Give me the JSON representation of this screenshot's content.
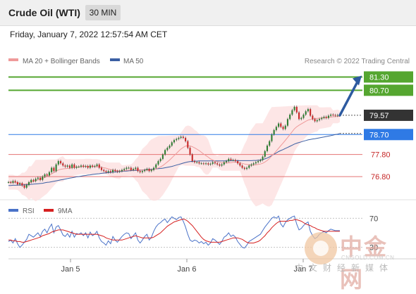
{
  "header": {
    "title": "Crude Oil (WTI)",
    "timeframe": "30 MIN",
    "timestamp": "Friday, January 7, 2022 12:57:54 AM CET"
  },
  "watermark": {
    "brand": "中金网",
    "url": "CNGOLD.COM.CN",
    "tagline": "中文财经新媒体"
  },
  "colors": {
    "candle_up": "#2e7d32",
    "candle_down": "#c62828",
    "ma20": "#ef9a9a",
    "bollinger_fill": "#fde0e0",
    "ma50": "#3b5fa3",
    "resistance": "#55a630",
    "current": "#333333",
    "pivot": "#2f7ae5",
    "support": "#e57373",
    "arrow": "#2d5aa0",
    "rsi": "#4a72c8",
    "rsi_ma": "#d62020"
  },
  "chart_data": [
    {
      "type": "candlestick",
      "title": "",
      "legend": [
        {
          "name": "MA 20 + Bollinger Bands",
          "color": "#ef9a9a"
        },
        {
          "name": "MA 50",
          "color": "#3b5fa3"
        }
      ],
      "legend_position": "top-left",
      "credit": "Research © 2022 Trading Central",
      "x_ticks": [
        "Jan 5",
        "Jan 6",
        "Jan 7"
      ],
      "ylim": [
        76.2,
        81.6
      ],
      "levels": [
        {
          "value": 81.3,
          "label": "81.30",
          "kind": "resistance"
        },
        {
          "value": 80.7,
          "label": "80.70",
          "kind": "resistance"
        },
        {
          "value": 79.57,
          "label": "79.57",
          "kind": "current"
        },
        {
          "value": 78.7,
          "label": "78.70",
          "kind": "pivot"
        },
        {
          "value": 77.8,
          "label": "77.80",
          "kind": "support"
        },
        {
          "value": 76.8,
          "label": "76.80",
          "kind": "support"
        }
      ],
      "arrow": {
        "from": 79.57,
        "to": 81.3,
        "direction": "up"
      },
      "series": [
        {
          "name": "price",
          "close": [
            76.55,
            76.52,
            76.6,
            76.55,
            76.45,
            76.5,
            76.4,
            76.3,
            76.42,
            76.55,
            76.65,
            76.6,
            76.7,
            76.75,
            76.65,
            76.8,
            76.9,
            76.85,
            77.0,
            77.2,
            77.05,
            77.35,
            77.5,
            77.4,
            77.3,
            77.25,
            77.3,
            77.2,
            77.35,
            77.2,
            77.25,
            77.25,
            77.3,
            77.25,
            77.28,
            77.2,
            77.3,
            77.25,
            77.28,
            77.35,
            77.2,
            77.1,
            77.05,
            77.0,
            77.05,
            77.0,
            77.1,
            77.05,
            77.02,
            77.05,
            77.1,
            77.15,
            77.2,
            77.2,
            77.1,
            77.15,
            77.2,
            77.05,
            77.0,
            77.05,
            77.1,
            77.15,
            77.05,
            77.1,
            77.2,
            77.35,
            77.5,
            77.6,
            77.8,
            78.0,
            78.1,
            78.2,
            78.35,
            78.45,
            78.5,
            78.55,
            78.6,
            78.55,
            78.4,
            78.1,
            77.8,
            77.5,
            77.45,
            77.45,
            77.4,
            77.4,
            77.38,
            77.4,
            77.35,
            77.38,
            77.45,
            77.4,
            77.35,
            77.3,
            77.35,
            77.45,
            77.5,
            77.6,
            77.55,
            77.55,
            77.5,
            77.4,
            77.3,
            77.2,
            77.15,
            77.2,
            77.3,
            77.35,
            77.4,
            77.45,
            77.5,
            77.55,
            77.7,
            77.95,
            78.2,
            78.4,
            78.7,
            78.9,
            79.05,
            79.2,
            79.05,
            78.95,
            79.1,
            79.4,
            79.6,
            79.8,
            79.95,
            79.7,
            79.4,
            79.45,
            79.6,
            79.75,
            79.85,
            79.55,
            79.4,
            79.3,
            79.35,
            79.4,
            79.45,
            79.5,
            79.45,
            79.55,
            79.6,
            79.58,
            79.55,
            79.58,
            79.57
          ],
          "ma20": [
            76.55,
            76.55,
            76.55,
            76.53,
            76.52,
            76.5,
            76.48,
            76.46,
            76.47,
            76.5,
            76.55,
            76.58,
            76.62,
            76.65,
            76.68,
            76.72,
            76.76,
            76.8,
            76.86,
            76.92,
            76.98,
            77.04,
            77.1,
            77.13,
            77.15,
            77.16,
            77.17,
            77.18,
            77.2,
            77.22,
            77.23,
            77.24,
            77.25,
            77.25,
            77.26,
            77.26,
            77.26,
            77.25,
            77.25,
            77.25,
            77.24,
            77.22,
            77.2,
            77.18,
            77.15,
            77.12,
            77.1,
            77.08,
            77.07,
            77.06,
            77.06,
            77.07,
            77.08,
            77.09,
            77.1,
            77.1,
            77.11,
            77.11,
            77.1,
            77.1,
            77.1,
            77.1,
            77.1,
            77.11,
            77.12,
            77.15,
            77.19,
            77.24,
            77.3,
            77.38,
            77.46,
            77.55,
            77.65,
            77.75,
            77.85,
            77.95,
            78.05,
            78.12,
            78.18,
            78.2,
            78.19,
            78.15,
            78.1,
            78.04,
            77.98,
            77.9,
            77.82,
            77.75,
            77.68,
            77.6,
            77.55,
            77.5,
            77.47,
            77.45,
            77.43,
            77.42,
            77.42,
            77.42,
            77.43,
            77.45,
            77.45,
            77.45,
            77.43,
            77.4,
            77.37,
            77.35,
            77.33,
            77.32,
            77.32,
            77.33,
            77.35,
            77.37,
            77.4,
            77.46,
            77.53,
            77.62,
            77.73,
            77.84,
            77.96,
            78.08,
            78.2,
            78.32,
            78.44,
            78.57,
            78.7,
            78.83,
            78.96,
            79.05,
            79.12,
            79.18,
            79.24,
            79.3,
            79.35,
            79.38,
            79.4,
            79.42,
            79.43,
            79.44,
            79.45,
            79.46,
            79.47,
            79.48,
            79.49,
            79.5,
            79.51,
            79.52,
            79.52
          ],
          "ma50": [
            76.4,
            76.4,
            76.41,
            76.41,
            76.42,
            76.42,
            76.42,
            76.43,
            76.43,
            76.44,
            76.45,
            76.46,
            76.47,
            76.48,
            76.49,
            76.5,
            76.52,
            76.54,
            76.55,
            76.57,
            76.59,
            76.61,
            76.63,
            76.65,
            76.67,
            76.69,
            76.71,
            76.73,
            76.75,
            76.77,
            76.79,
            76.8,
            76.82,
            76.84,
            76.85,
            76.87,
            76.88,
            76.9,
            76.91,
            76.92,
            76.93,
            76.95,
            76.96,
            76.97,
            76.98,
            76.99,
            77.0,
            77.01,
            77.02,
            77.03,
            77.04,
            77.05,
            77.05,
            77.06,
            77.07,
            77.08,
            77.08,
            77.09,
            77.1,
            77.1,
            77.11,
            77.12,
            77.12,
            77.13,
            77.14,
            77.15,
            77.16,
            77.17,
            77.18,
            77.2,
            77.22,
            77.24,
            77.26,
            77.29,
            77.32,
            77.35,
            77.38,
            77.41,
            77.44,
            77.46,
            77.48,
            77.49,
            77.5,
            77.5,
            77.51,
            77.51,
            77.51,
            77.51,
            77.51,
            77.51,
            77.51,
            77.51,
            77.51,
            77.51,
            77.51,
            77.51,
            77.51,
            77.51,
            77.52,
            77.52,
            77.52,
            77.52,
            77.52,
            77.52,
            77.52,
            77.52,
            77.52,
            77.52,
            77.53,
            77.53,
            77.54,
            77.55,
            77.57,
            77.6,
            77.64,
            77.69,
            77.75,
            77.81,
            77.87,
            77.93,
            77.98,
            78.02,
            78.07,
            78.12,
            78.17,
            78.22,
            78.27,
            78.31,
            78.34,
            78.37,
            78.4,
            78.43,
            78.46,
            78.48,
            78.5,
            78.51,
            78.53,
            78.55,
            78.57,
            78.59,
            78.61,
            78.63,
            78.65,
            78.67,
            78.7,
            78.72,
            78.75
          ]
        }
      ]
    },
    {
      "type": "line",
      "title": "",
      "legend": [
        {
          "name": "RSI",
          "color": "#4a72c8"
        },
        {
          "name": "9MA",
          "color": "#d62020"
        }
      ],
      "legend_position": "top-left",
      "ylim": [
        20,
        80
      ],
      "y_ticks": [
        "70",
        "30"
      ],
      "series": [
        {
          "name": "RSI",
          "values": [
            38,
            40,
            36,
            42,
            35,
            30,
            33,
            37,
            41,
            48,
            46,
            44,
            47,
            50,
            45,
            52,
            55,
            50,
            57,
            62,
            50,
            58,
            60,
            54,
            47,
            45,
            49,
            44,
            52,
            44,
            49,
            48,
            50,
            46,
            50,
            43,
            51,
            46,
            48,
            52,
            43,
            38,
            36,
            33,
            39,
            35,
            45,
            40,
            37,
            41,
            45,
            48,
            50,
            49,
            42,
            46,
            50,
            40,
            36,
            40,
            45,
            48,
            40,
            44,
            52,
            58,
            62,
            64,
            67,
            69,
            64,
            68,
            72,
            70,
            68,
            71,
            72,
            66,
            58,
            48,
            40,
            38,
            40,
            39,
            36,
            38,
            35,
            37,
            33,
            36,
            42,
            40,
            37,
            34,
            38,
            44,
            46,
            50,
            45,
            47,
            44,
            38,
            34,
            30,
            29,
            33,
            38,
            40,
            42,
            44,
            46,
            48,
            53,
            58,
            62,
            66,
            70,
            72,
            70,
            73,
            62,
            58,
            64,
            68,
            70,
            72,
            73,
            62,
            54,
            56,
            60,
            63,
            65,
            52,
            46,
            42,
            44,
            48,
            50,
            52,
            50,
            53,
            55,
            54,
            53,
            53,
            53
          ]
        },
        {
          "name": "9MA",
          "values": [
            40,
            40,
            39,
            39,
            38,
            38,
            37,
            37,
            38,
            39,
            40,
            41,
            42,
            43,
            44,
            46,
            47,
            48,
            49,
            51,
            52,
            53,
            54,
            54,
            54,
            53,
            52,
            51,
            50,
            49,
            48,
            48,
            48,
            48,
            48,
            48,
            48,
            48,
            48,
            48,
            47,
            46,
            45,
            43,
            42,
            41,
            40,
            40,
            40,
            40,
            40,
            41,
            42,
            43,
            44,
            45,
            46,
            45,
            44,
            43,
            43,
            43,
            43,
            43,
            44,
            46,
            48,
            50,
            53,
            56,
            59,
            61,
            63,
            65,
            66,
            67,
            68,
            69,
            68,
            66,
            63,
            60,
            56,
            52,
            48,
            44,
            41,
            39,
            38,
            37,
            37,
            37,
            37,
            37,
            38,
            39,
            40,
            41,
            42,
            43,
            43,
            43,
            42,
            41,
            39,
            37,
            36,
            36,
            36,
            37,
            38,
            40,
            43,
            46,
            50,
            53,
            57,
            60,
            63,
            65,
            66,
            66,
            66,
            66,
            67,
            67,
            68,
            68,
            67,
            66,
            64,
            62,
            61,
            60,
            58,
            57,
            55,
            54,
            53,
            52,
            52,
            52,
            52,
            52,
            52,
            52,
            52
          ]
        }
      ]
    }
  ]
}
